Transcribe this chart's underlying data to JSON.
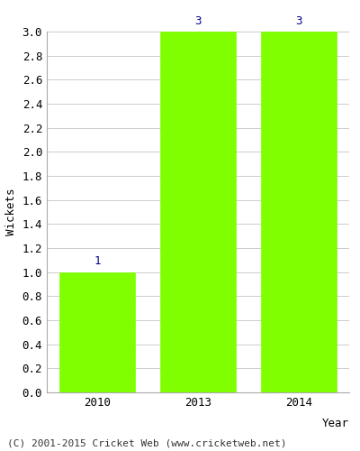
{
  "categories": [
    "2010",
    "2013",
    "2014"
  ],
  "values": [
    1,
    3,
    3
  ],
  "bar_color": "#7fff00",
  "bar_edgecolor": "#7fff00",
  "xlabel": "Year",
  "ylabel": "Wickets",
  "ylim": [
    0,
    3.0
  ],
  "yticks": [
    0.0,
    0.2,
    0.4,
    0.6,
    0.8,
    1.0,
    1.2,
    1.4,
    1.6,
    1.8,
    2.0,
    2.2,
    2.4,
    2.6,
    2.8,
    3.0
  ],
  "bar_label_color": "#00008b",
  "bar_label_fontsize": 9,
  "axis_label_fontsize": 9,
  "tick_fontsize": 9,
  "footer_text": "(C) 2001-2015 Cricket Web (www.cricketweb.net)",
  "footer_fontsize": 8,
  "background_color": "#ffffff",
  "grid_color": "#cccccc",
  "bar_width": 0.75
}
